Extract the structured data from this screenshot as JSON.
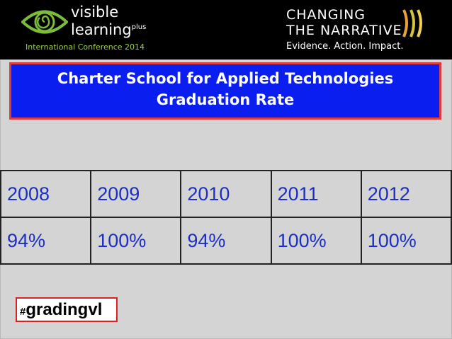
{
  "header": {
    "left_logo": {
      "line1": "visible",
      "line2": "learning",
      "superscript": "plus",
      "tagline": "International Conference 2014"
    },
    "right_logo": {
      "line1": "CHANGING",
      "line2": "THE NARRATIVE",
      "tagline": "Evidence. Action. Impact."
    }
  },
  "title": {
    "line1": "Charter School for Applied Technologies",
    "line2": "Graduation Rate"
  },
  "table": {
    "rows": [
      [
        "2008",
        "2009",
        "2010",
        "2011",
        "2012"
      ],
      [
        "94%",
        "100%",
        "94%",
        "100%",
        "100%"
      ]
    ]
  },
  "hashtag": {
    "symbol": "#",
    "tag": "gradingvl"
  }
}
